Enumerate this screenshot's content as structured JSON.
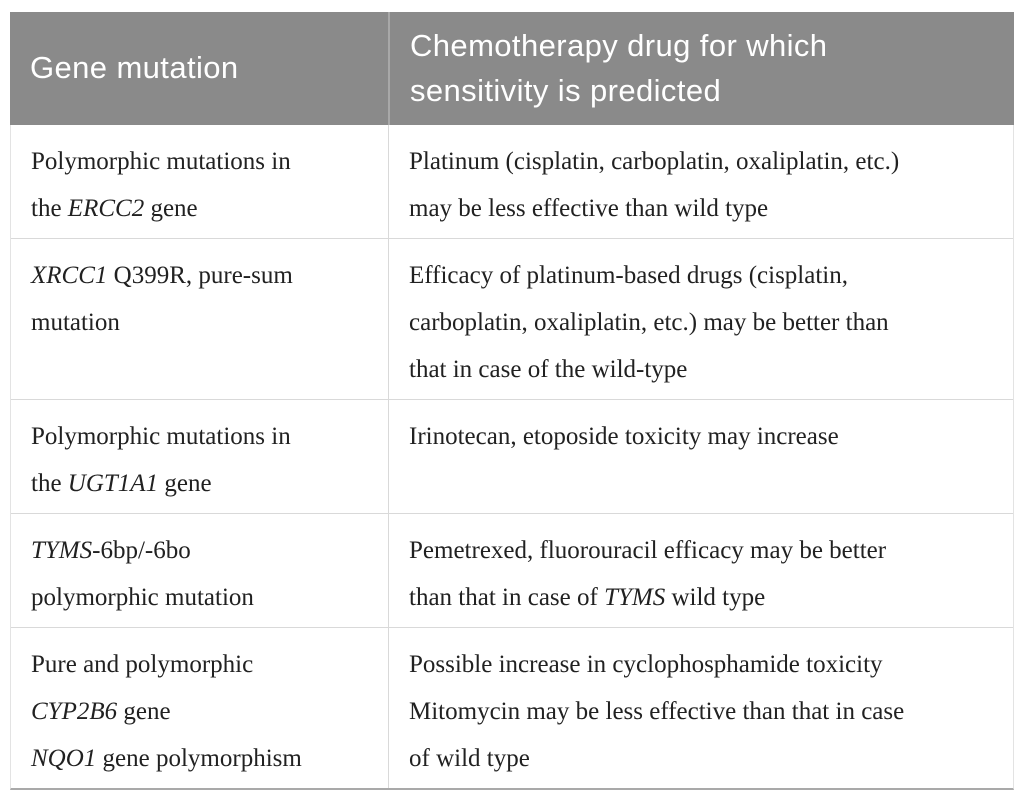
{
  "table": {
    "header": {
      "gene_col": "Gene mutation",
      "drug_col": "Chemotherapy drug for which\nsensitivity is predicted"
    },
    "rows": [
      {
        "gene": "Polymorphic mutations in\nthe *ERCC2* gene",
        "drug": "Platinum (cisplatin, carboplatin, oxaliplatin, etc.)\nmay be less effective than wild type"
      },
      {
        "gene": "*XRCC1* Q399R, pure-sum\nmutation",
        "drug": "Efficacy of platinum-based drugs (cisplatin,\ncarboplatin, oxaliplatin, etc.) may be better than\nthat in case of the wild-type"
      },
      {
        "gene": "Polymorphic mutations in\nthe *UGT1A1* gene",
        "drug": "Irinotecan, etoposide toxicity may increase"
      },
      {
        "gene": "*TYMS*-6bp/-6bo\npolymorphic mutation",
        "drug": "Pemetrexed, fluorouracil efficacy may be better\nthan that in case of *TYMS* wild type"
      },
      {
        "gene": "Pure and polymorphic\n*CYP2B6* gene\n*NQO1* gene polymorphism",
        "drug": "Possible increase in cyclophosphamide toxicity\nMitomycin may be less effective than that in case\nof wild type"
      }
    ]
  },
  "colors": {
    "header_background": "#8a8a8a",
    "header_text": "#ffffff",
    "body_text": "#212121",
    "row_divider": "#d9d9d9",
    "table_bottom_border": "#a9a9a9"
  }
}
